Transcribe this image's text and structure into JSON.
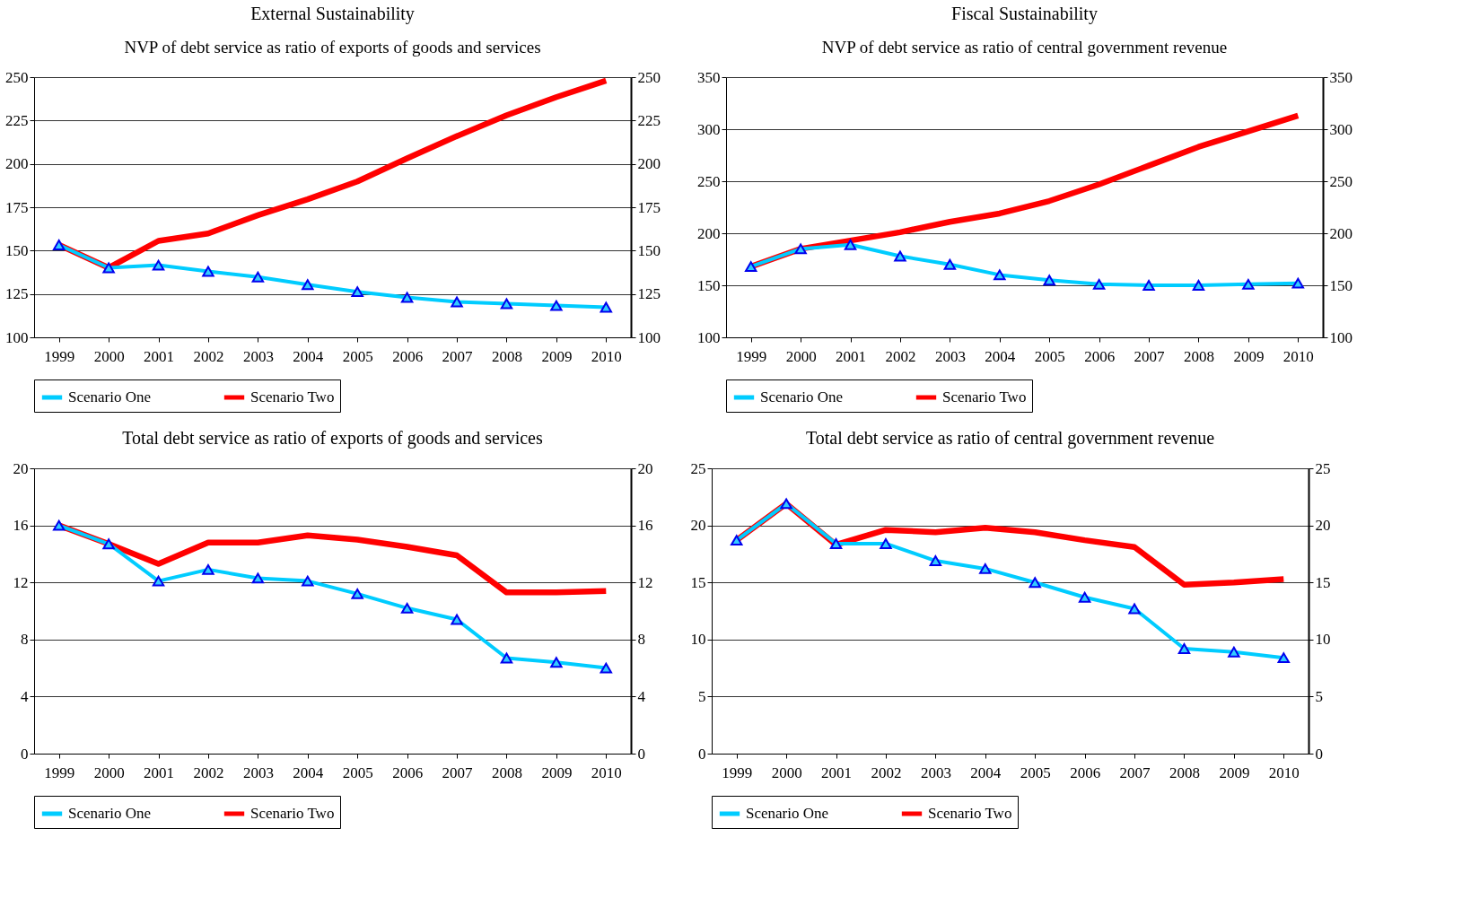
{
  "chart_data": [
    {
      "type": "line",
      "title": "External Sustainability",
      "subtitle": "NVP of debt service as ratio of exports of goods and services",
      "categories": [
        "1999",
        "2000",
        "2001",
        "2002",
        "2003",
        "2004",
        "2005",
        "2006",
        "2007",
        "2008",
        "2009",
        "2010"
      ],
      "series": [
        {
          "name": "Scenario One",
          "color": "#00ccff",
          "marker": "triangle",
          "values": [
            153.3,
            140.1,
            141.6,
            138,
            134.8,
            130.4,
            126.3,
            123,
            120.4,
            119.4,
            118.3,
            117.3
          ]
        },
        {
          "name": "Scenario Two",
          "color": "#ff0000",
          "marker": "none",
          "values": [
            153.3,
            140.1,
            155.6,
            159.9,
            170.4,
            179.6,
            189.9,
            203.2,
            216,
            228,
            238.5,
            248
          ]
        }
      ],
      "ylim": [
        100,
        250
      ],
      "yticks": [
        100,
        125,
        150,
        175,
        200,
        225,
        250
      ],
      "y2lim": [
        100,
        250
      ],
      "y2ticks": [
        100,
        125,
        150,
        175,
        200,
        225,
        250
      ],
      "grid": "y",
      "legend": "bottom"
    },
    {
      "type": "line",
      "title": "Fiscal Sustainability",
      "subtitle": "NVP of debt service as ratio of central government revenue",
      "categories": [
        "1999",
        "2000",
        "2001",
        "2002",
        "2003",
        "2004",
        "2005",
        "2006",
        "2007",
        "2008",
        "2009",
        "2010"
      ],
      "series": [
        {
          "name": "Scenario One",
          "color": "#00ccff",
          "marker": "triangle",
          "values": [
            168,
            185,
            189,
            178,
            170,
            160,
            155,
            151,
            150,
            150,
            151,
            152
          ]
        },
        {
          "name": "Scenario Two",
          "color": "#ff0000",
          "marker": "none",
          "values": [
            168,
            185,
            193,
            201,
            211,
            219,
            231,
            247,
            265,
            283,
            298,
            313
          ]
        }
      ],
      "ylim": [
        100,
        350
      ],
      "yticks": [
        100,
        150,
        200,
        250,
        300,
        350
      ],
      "y2lim": [
        100,
        350
      ],
      "y2ticks": [
        100,
        150,
        200,
        250,
        300,
        350
      ],
      "grid": "y",
      "legend": "bottom"
    },
    {
      "type": "line",
      "title": "Total debt service as ratio of exports of goods and services",
      "categories": [
        "1999",
        "2000",
        "2001",
        "2002",
        "2003",
        "2004",
        "2005",
        "2006",
        "2007",
        "2008",
        "2009",
        "2010"
      ],
      "series": [
        {
          "name": "Scenario One",
          "color": "#00ccff",
          "marker": "triangle",
          "values": [
            16,
            14.7,
            12.1,
            12.9,
            12.3,
            12.1,
            11.2,
            10.2,
            9.4,
            6.7,
            6.4,
            6.0
          ]
        },
        {
          "name": "Scenario Two",
          "color": "#ff0000",
          "marker": "none",
          "values": [
            16,
            14.7,
            13.3,
            14.8,
            14.8,
            15.3,
            15.0,
            14.5,
            13.9,
            11.3,
            11.3,
            11.4
          ]
        }
      ],
      "ylim": [
        0,
        20
      ],
      "yticks": [
        0,
        4,
        8,
        12,
        16,
        20
      ],
      "y2lim": [
        0,
        20
      ],
      "y2ticks": [
        0,
        4,
        8,
        12,
        16,
        20
      ],
      "grid": "y",
      "legend": "bottom"
    },
    {
      "type": "line",
      "title": "Total debt service as ratio of central government revenue",
      "categories": [
        "1999",
        "2000",
        "2001",
        "2002",
        "2003",
        "2004",
        "2005",
        "2006",
        "2007",
        "2008",
        "2009",
        "2010"
      ],
      "series": [
        {
          "name": "Scenario One",
          "color": "#00ccff",
          "marker": "triangle",
          "values": [
            18.7,
            21.9,
            18.4,
            18.4,
            16.9,
            16.2,
            15,
            13.7,
            12.7,
            9.2,
            8.9,
            8.4
          ]
        },
        {
          "name": "Scenario Two",
          "color": "#ff0000",
          "marker": "none",
          "values": [
            18.7,
            21.9,
            18.3,
            19.6,
            19.4,
            19.8,
            19.4,
            18.7,
            18.1,
            14.8,
            15.0,
            15.3
          ]
        }
      ],
      "ylim": [
        0,
        25
      ],
      "yticks": [
        0,
        5,
        10,
        15,
        20,
        25
      ],
      "y2lim": [
        0,
        25
      ],
      "y2ticks": [
        0,
        5,
        10,
        15,
        20,
        25
      ],
      "grid": "y",
      "legend": "bottom"
    }
  ]
}
